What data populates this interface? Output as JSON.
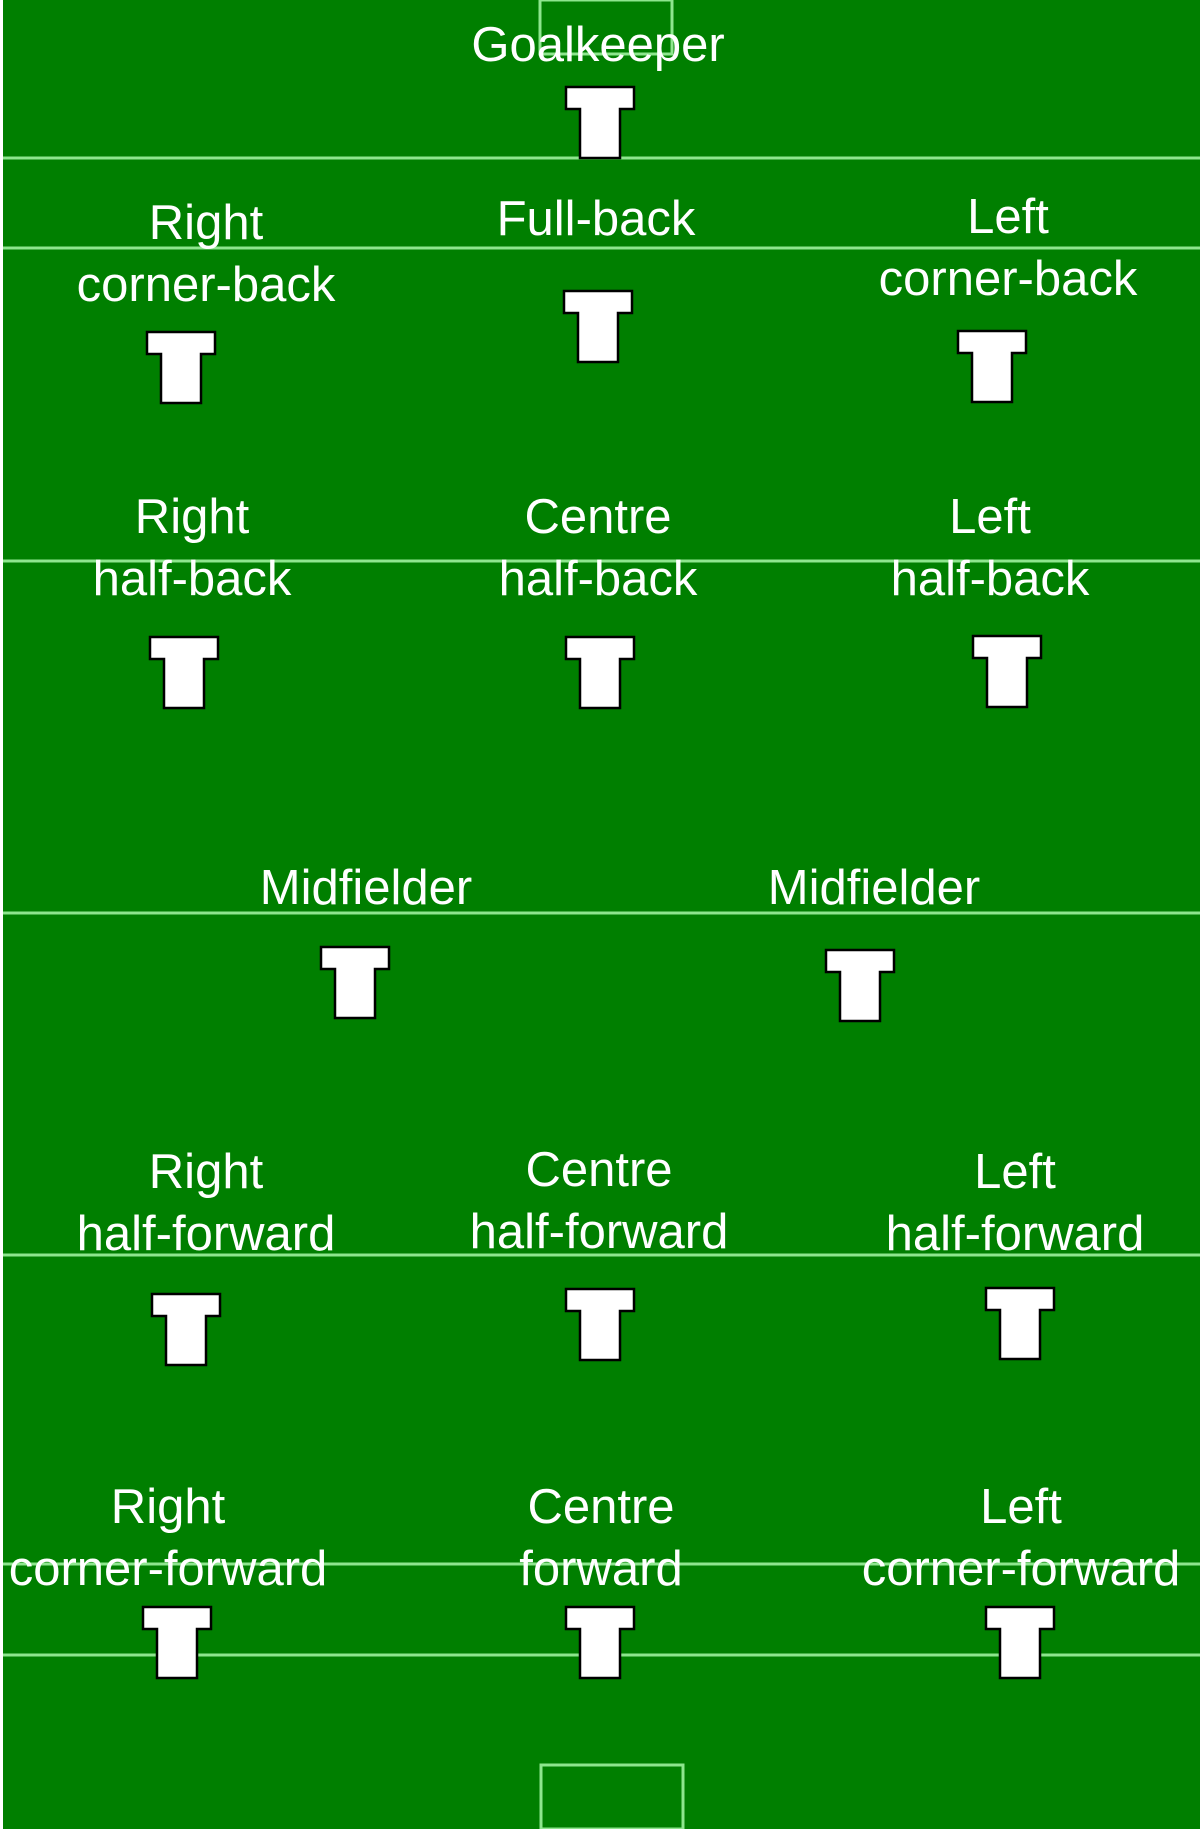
{
  "colors": {
    "grass": "#007f00",
    "line": "#8ee68e",
    "jersey": "#ffffff",
    "jersey_outline": "#000000",
    "text": "#ffffff"
  },
  "positions": [
    {
      "id": "goalkeeper",
      "lines": [
        "Goalkeeper"
      ]
    },
    {
      "id": "right-corner-back",
      "lines": [
        "Right",
        "corner-back"
      ]
    },
    {
      "id": "full-back",
      "lines": [
        "Full-back"
      ]
    },
    {
      "id": "left-corner-back",
      "lines": [
        "Left",
        "corner-back"
      ]
    },
    {
      "id": "right-half-back",
      "lines": [
        "Right",
        "half-back"
      ]
    },
    {
      "id": "centre-half-back",
      "lines": [
        "Centre",
        "half-back"
      ]
    },
    {
      "id": "left-half-back",
      "lines": [
        "Left",
        "half-back"
      ]
    },
    {
      "id": "midfielder-1",
      "lines": [
        "Midfielder"
      ]
    },
    {
      "id": "midfielder-2",
      "lines": [
        "Midfielder"
      ]
    },
    {
      "id": "right-half-forward",
      "lines": [
        "Right",
        "half-forward"
      ]
    },
    {
      "id": "centre-half-forward",
      "lines": [
        "Centre",
        "half-forward"
      ]
    },
    {
      "id": "left-half-forward",
      "lines": [
        "Left",
        "half-forward"
      ]
    },
    {
      "id": "right-corner-forward",
      "lines": [
        "Right",
        "corner-forward"
      ]
    },
    {
      "id": "centre-forward",
      "lines": [
        "Centre",
        "forward"
      ]
    },
    {
      "id": "left-corner-forward",
      "lines": [
        "Left",
        "corner-forward"
      ]
    }
  ]
}
